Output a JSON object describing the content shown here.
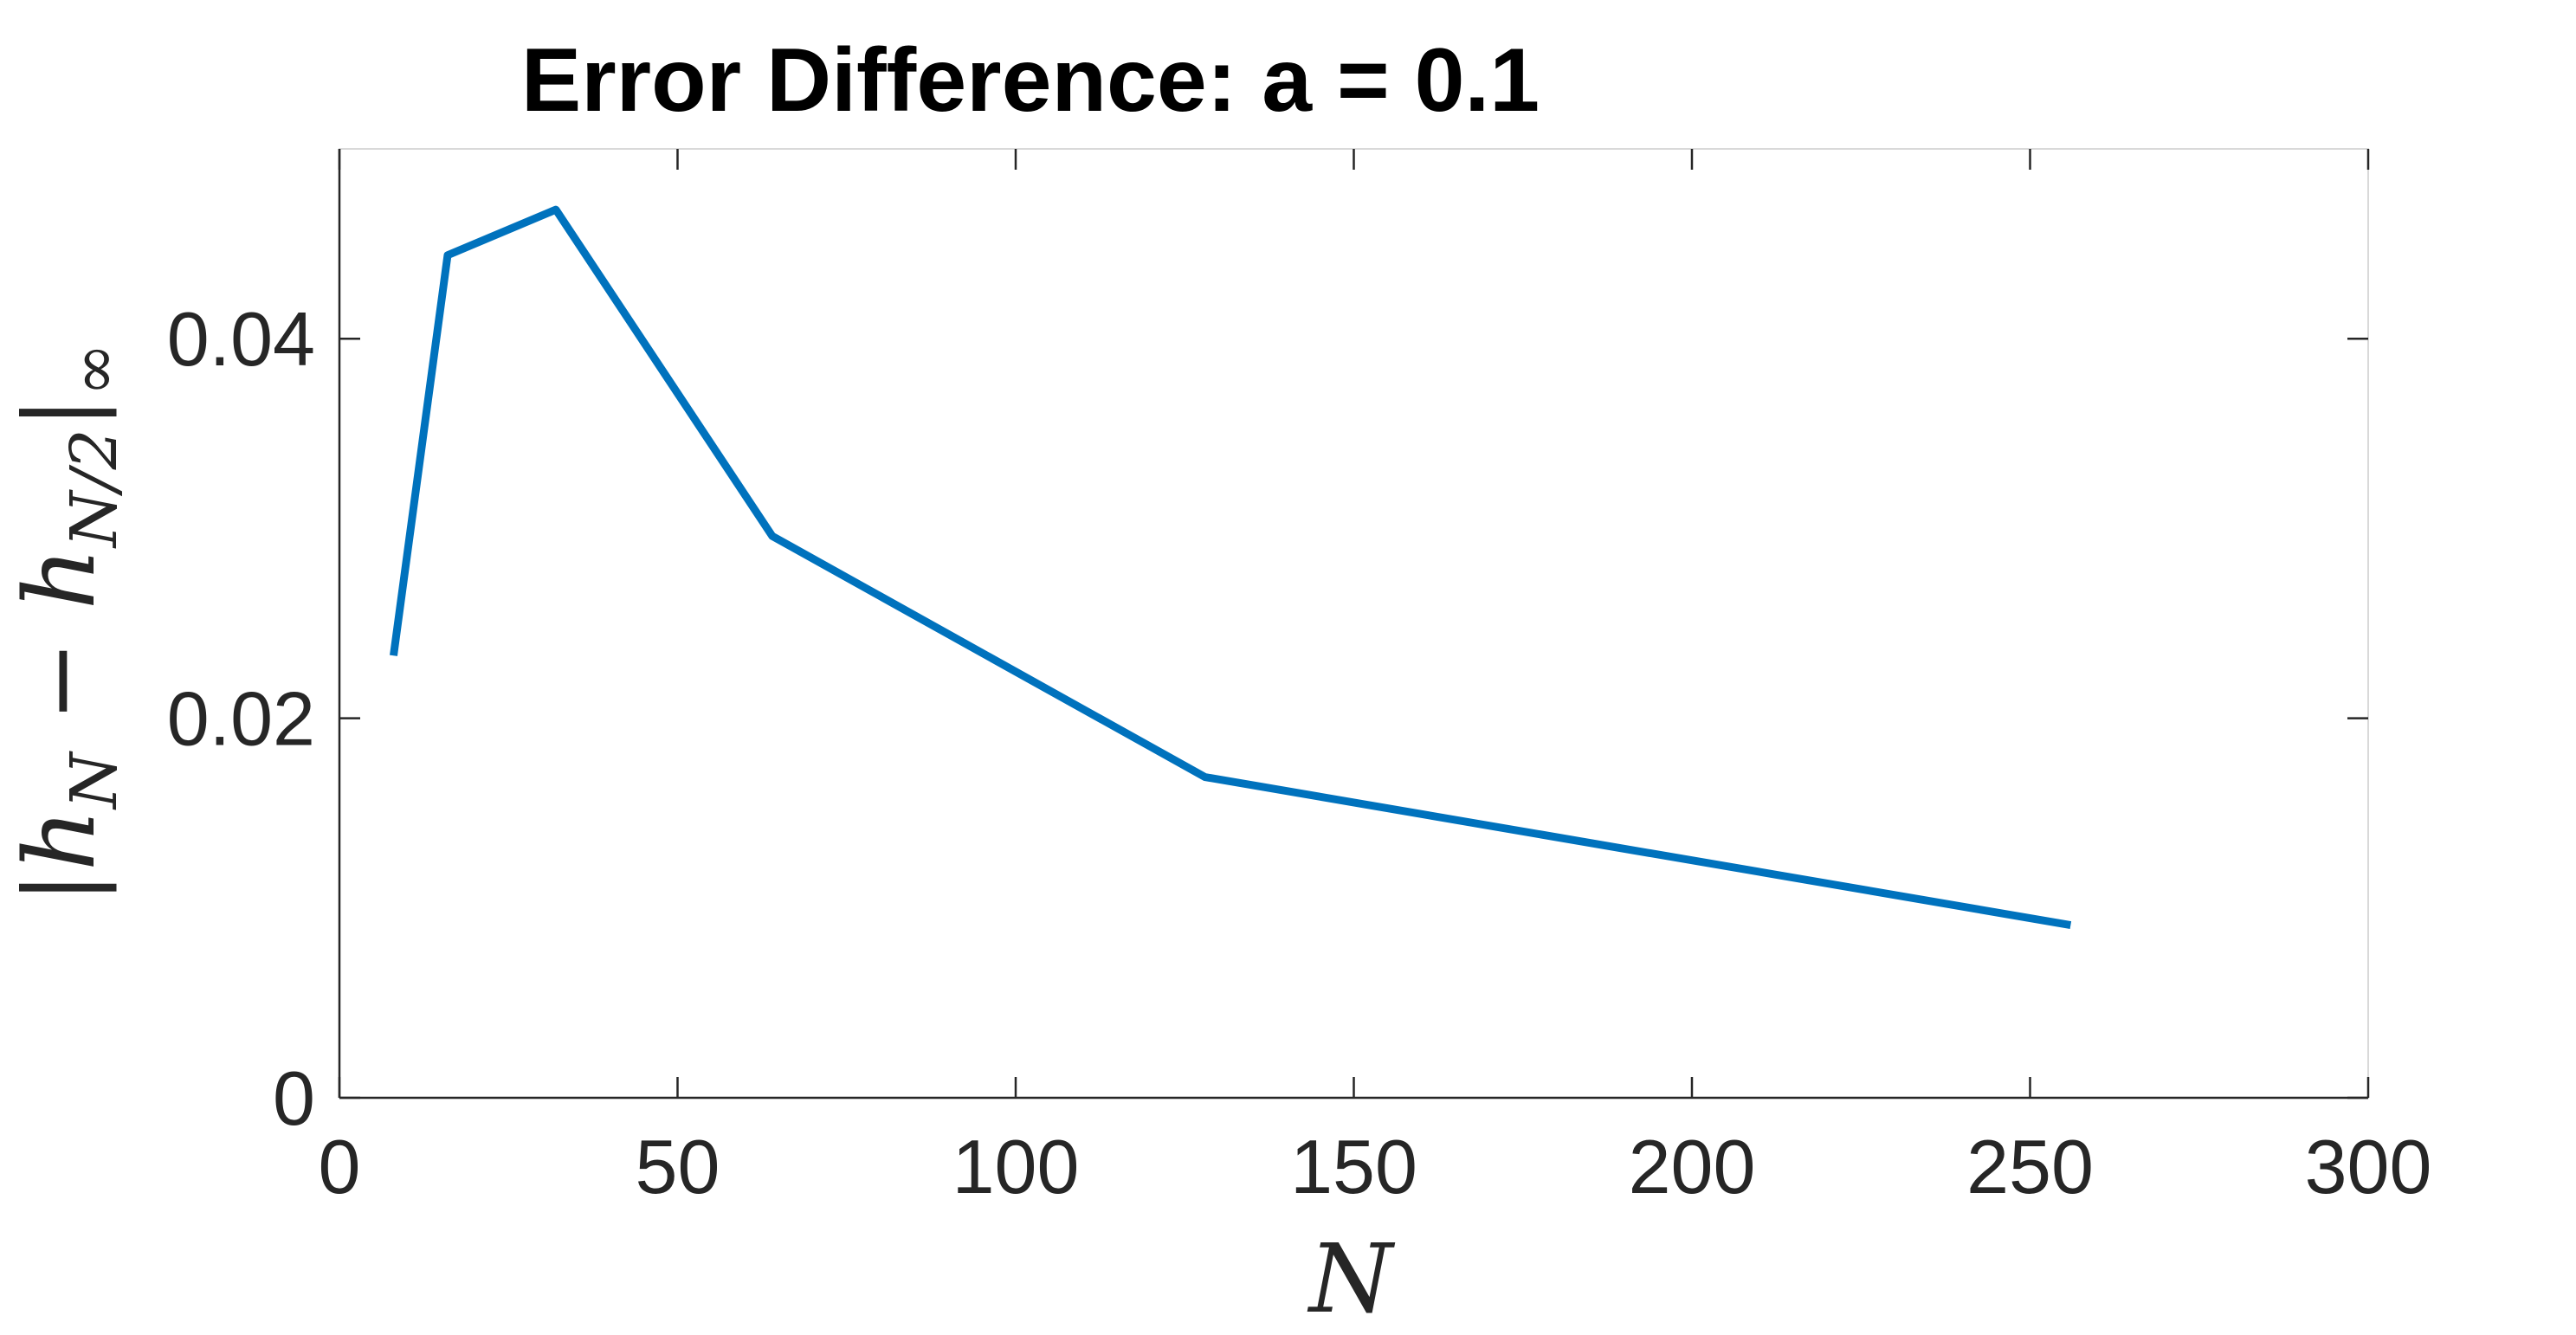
{
  "chart_data": {
    "type": "line",
    "title": "Error Difference: a = 0.1",
    "xlabel": "N",
    "ylabel": "|h_N − h_{N/2}|_∞",
    "xlim": [
      0,
      300
    ],
    "ylim": [
      0,
      0.05
    ],
    "xticks": [
      0,
      50,
      100,
      150,
      200,
      250,
      300
    ],
    "yticks": [
      0,
      0.02,
      0.04
    ],
    "xtick_labels": [
      "0",
      "50",
      "100",
      "150",
      "200",
      "250",
      "300"
    ],
    "ytick_labels": [
      "0",
      "0.02",
      "0.04"
    ],
    "grid": false,
    "colors": {
      "series": "#0072BD",
      "axes": "#262626",
      "box": "#d9d9d9"
    },
    "series": [
      {
        "x": [
          8,
          16,
          32,
          64,
          128,
          256
        ],
        "y": [
          0.0233,
          0.0444,
          0.0468,
          0.0296,
          0.0169,
          0.0091
        ]
      }
    ]
  }
}
